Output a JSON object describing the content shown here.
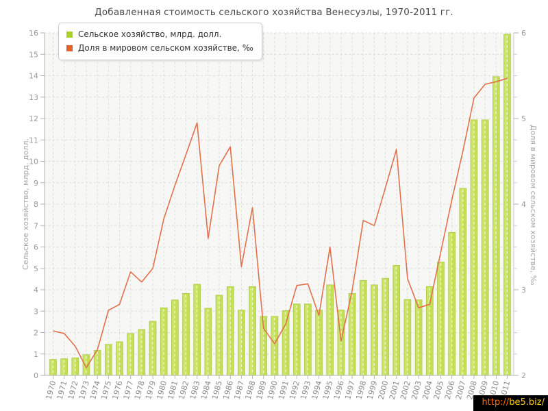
{
  "page": {
    "title": "Добавленная стоимость сельского хозяйства Венесуэлы, 1970-2011 гг."
  },
  "watermark": {
    "prefix": "http://",
    "domain": "be5.biz/",
    "prefix_color": "#ff6a00",
    "domain_color": "#ffcc00",
    "background": "#000000"
  },
  "chart_data": {
    "type": "bar",
    "title": "Добавленная стоимость сельского хозяйства Венесуэлы, 1970-2011 гг.",
    "categories": [
      "1970",
      "1971",
      "1972",
      "1973",
      "1974",
      "1975",
      "1976",
      "1977",
      "1978",
      "1979",
      "1980",
      "1981",
      "1982",
      "1983",
      "1984",
      "1985",
      "1986",
      "1987",
      "1988",
      "1989",
      "1990",
      "1991",
      "1992",
      "1993",
      "1994",
      "1995",
      "1996",
      "1997",
      "1998",
      "1999",
      "2000",
      "2001",
      "2002",
      "2003",
      "2004",
      "2005",
      "2006",
      "2007",
      "2008",
      "2009",
      "2010",
      "2011"
    ],
    "series": [
      {
        "name": "Сельское хозяйство, млрд. долл.",
        "type": "bar",
        "axis": "left",
        "color": "#c3df55",
        "swatch_color": "#abd326",
        "values": [
          0.75,
          0.78,
          0.82,
          0.97,
          1.17,
          1.45,
          1.57,
          1.96,
          2.15,
          2.53,
          3.16,
          3.53,
          3.83,
          4.26,
          3.14,
          3.75,
          4.15,
          3.05,
          4.15,
          2.76,
          2.76,
          3.03,
          3.34,
          3.34,
          3.05,
          4.23,
          3.05,
          3.83,
          4.44,
          4.23,
          4.54,
          5.14,
          3.55,
          3.53,
          4.15,
          5.3,
          6.68,
          8.74,
          11.94,
          11.94,
          13.96,
          15.94
        ]
      },
      {
        "name": "Доля в мировом сельском хозяйстве, ‰",
        "type": "line",
        "axis": "right",
        "color": "#e2714b",
        "swatch_color": "#e2622d",
        "values": [
          2.52,
          2.49,
          2.34,
          2.09,
          2.3,
          2.76,
          2.83,
          3.21,
          3.09,
          3.25,
          3.83,
          4.22,
          4.58,
          4.95,
          3.6,
          4.45,
          4.67,
          3.27,
          3.96,
          2.55,
          2.37,
          2.6,
          3.05,
          3.07,
          2.7,
          3.5,
          2.4,
          2.99,
          3.81,
          3.75,
          4.19,
          4.64,
          3.13,
          2.79,
          2.83,
          3.44,
          4.05,
          4.62,
          5.24,
          5.4,
          5.43,
          5.47
        ]
      }
    ],
    "left_axis": {
      "label": "Сельское хозяйство, млрд. долл.",
      "min": 0,
      "max": 16,
      "ticks": [
        0,
        1,
        2,
        3,
        4,
        5,
        6,
        7,
        8,
        9,
        10,
        11,
        12,
        13,
        14,
        15,
        16
      ]
    },
    "right_axis": {
      "label": "Доля в мировом сельском хозяйстве, ‰",
      "min": 2,
      "max": 6,
      "ticks": [
        2,
        3,
        4,
        5,
        6
      ]
    },
    "grid": true,
    "legend_position": "top-left",
    "plot_background": "#f7f7f5",
    "grid_color": "#dcdcdc",
    "axis_color": "#b3b3b3",
    "tick_label_color": "#999999"
  }
}
